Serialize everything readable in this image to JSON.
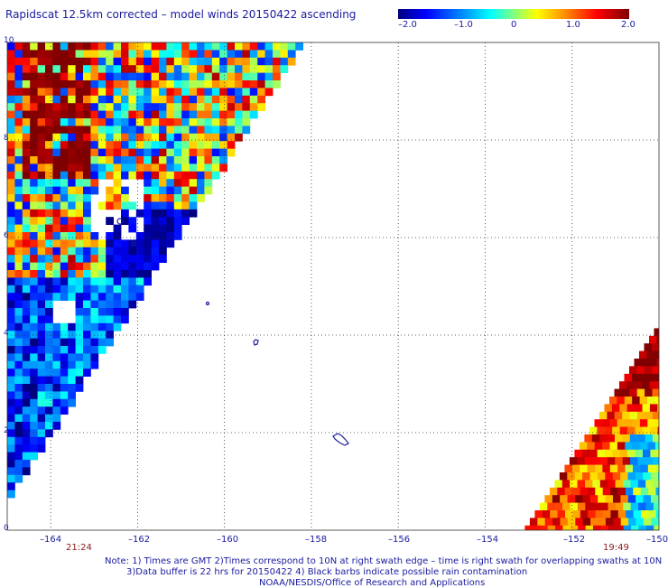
{
  "title": "Rapidscat 12.5km corrected – model winds 20150422 ascending",
  "colorbar": {
    "labels": [
      "–2.0",
      "–1.0",
      "0",
      "1.0",
      "2.0"
    ],
    "range": [
      -2.0,
      2.0
    ]
  },
  "map": {
    "lat_range": [
      0,
      10
    ],
    "lon_range": [
      -165,
      -150
    ],
    "y_ticks": [
      "10",
      "8",
      "6",
      "4",
      "2",
      "0"
    ],
    "x_ticks": [
      "–164",
      "–162",
      "–160",
      "–158",
      "–156",
      "–154",
      "–152",
      "–150"
    ],
    "grid": "dotted",
    "left_swath_time": "21:24",
    "right_swath_time": "19:49"
  },
  "notes": {
    "line1": "Note: 1) Times are GMT 2)Times correspond to 10N at right swath edge – time is right swath for overlapping swaths at 10N",
    "line2": "3)Data buffer is 22 hrs for 20150422 4) Black barbs indicate possible rain contamination",
    "line3": "NOAA/NESDIS/Office of Research and Applications"
  },
  "colors": {
    "text": "#1a1aa0",
    "time": "#8b1a1a"
  }
}
